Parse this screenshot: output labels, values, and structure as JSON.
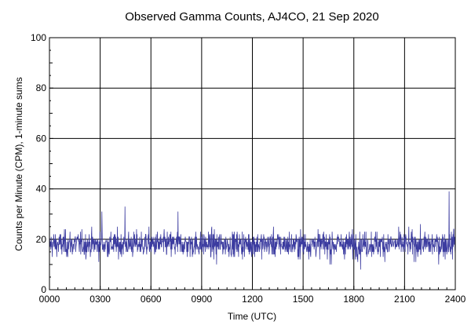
{
  "chart_data": {
    "type": "line",
    "title": "Observed Gamma Counts, AJ4CO, 21 Sep 2020",
    "xlabel": "Time (UTC)",
    "ylabel": "Counts per Minute (CPM), 1-minute sums",
    "xlim": [
      0,
      1440
    ],
    "ylim": [
      0,
      100
    ],
    "x_ticks": [
      {
        "label": "0000",
        "minute": 0
      },
      {
        "label": "0300",
        "minute": 180
      },
      {
        "label": "0600",
        "minute": 360
      },
      {
        "label": "0900",
        "minute": 540
      },
      {
        "label": "1200",
        "minute": 720
      },
      {
        "label": "1500",
        "minute": 900
      },
      {
        "label": "1800",
        "minute": 1080
      },
      {
        "label": "2100",
        "minute": 1260
      },
      {
        "label": "2400",
        "minute": 1440
      }
    ],
    "y_ticks": [
      0,
      20,
      40,
      60,
      80,
      100
    ],
    "grid": true,
    "series": [
      {
        "color": "#3c3ca0",
        "sampling": "1-minute sums, 1440 points",
        "mean": 18,
        "typical_range": [
          10,
          27
        ],
        "notable_points": [
          {
            "minute": 186,
            "value": 31
          },
          {
            "minute": 268,
            "value": 33
          },
          {
            "minute": 456,
            "value": 31
          },
          {
            "minute": 593,
            "value": 10
          },
          {
            "minute": 1000,
            "value": 10
          },
          {
            "minute": 1104,
            "value": 8
          },
          {
            "minute": 1418,
            "value": 39
          },
          {
            "minute": 1435,
            "value": 24
          }
        ]
      }
    ]
  }
}
